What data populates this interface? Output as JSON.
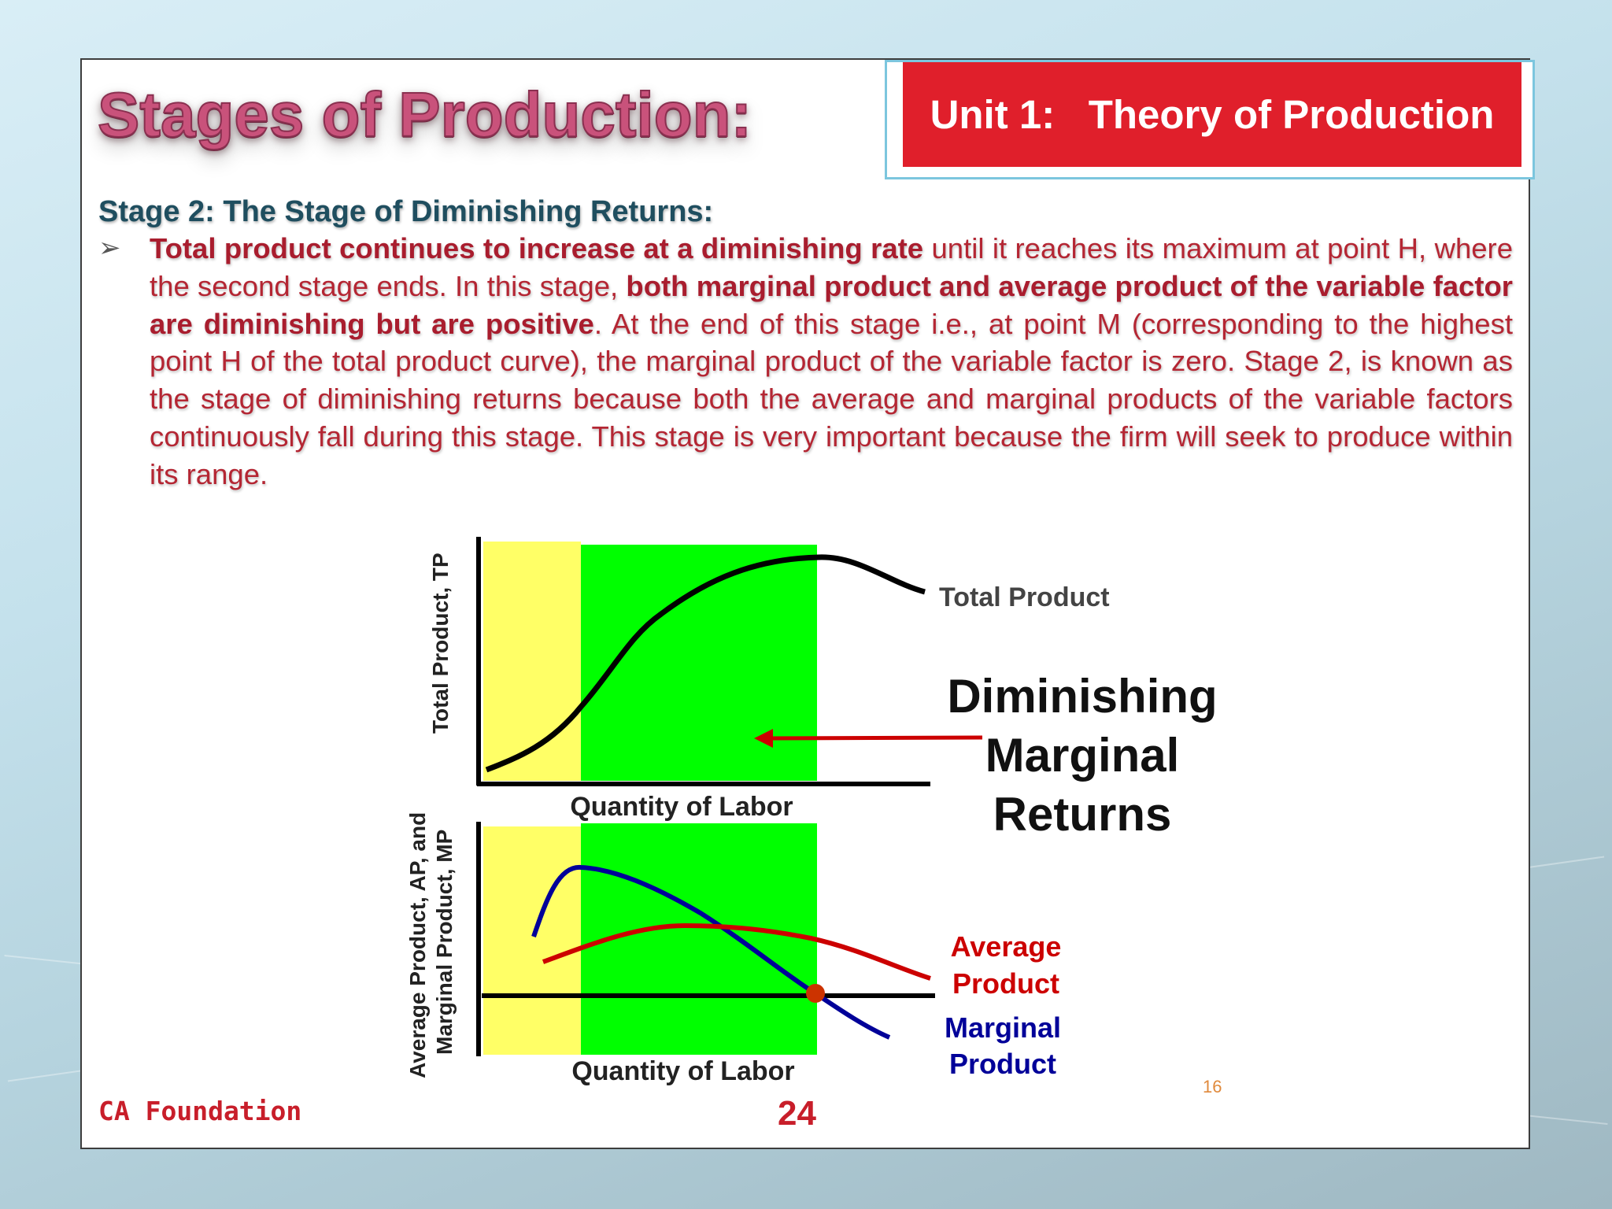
{
  "unit_label": "Unit 1:   Theory of Production",
  "title": "Stages of Production:",
  "subheading": "Stage 2: The Stage of Diminishing Returns:",
  "bullet_symbol": "➢",
  "paragraph": {
    "bold1": "Total product continues to increase at a diminishing rate",
    "text1": " until it reaches its maximum at point H, where the second stage ends. In this stage, ",
    "bold2": "both marginal product and average product of the variable factor are diminishing but are positive",
    "text2": ". At the end of this stage i.e., at point M (corresponding to the highest point H of the total product curve), the marginal product of the variable factor is zero. Stage 2, is known as the stage of diminishing returns because both the average and marginal products of the variable factors continuously fall during this stage. This stage is very important because the firm will seek to produce within its range."
  },
  "chart": {
    "top_ylabel": "Total Product, TP",
    "top_xlabel": "Quantity of Labor",
    "tp_label": "Total Product",
    "callout": [
      "Diminishing",
      "Marginal",
      "Returns"
    ],
    "bottom_ylabel_1": "Average Product, AP, and",
    "bottom_ylabel_2": "Marginal Product, MP",
    "bottom_xlabel": "Quantity of Labor",
    "ap_label": [
      "Average",
      "Product"
    ],
    "mp_label": [
      "Marginal",
      "Product"
    ],
    "colors": {
      "stage1": "#ffff66",
      "stage2": "#00ff00",
      "ap": "#cc0000",
      "mp": "#000099",
      "tp": "#000000",
      "point": "#cc3300"
    },
    "slide_number": "16"
  },
  "chart_data": {
    "type": "line",
    "series": [
      {
        "name": "Total Product",
        "shape": "S-curve rising to maximum then falling"
      },
      {
        "name": "Average Product",
        "shape": "rising then gently falling, stays positive"
      },
      {
        "name": "Marginal Product",
        "shape": "peaks early, falls through zero at end of stage 2"
      }
    ]
  },
  "footer": {
    "left": "CA Foundation",
    "page": "24"
  }
}
